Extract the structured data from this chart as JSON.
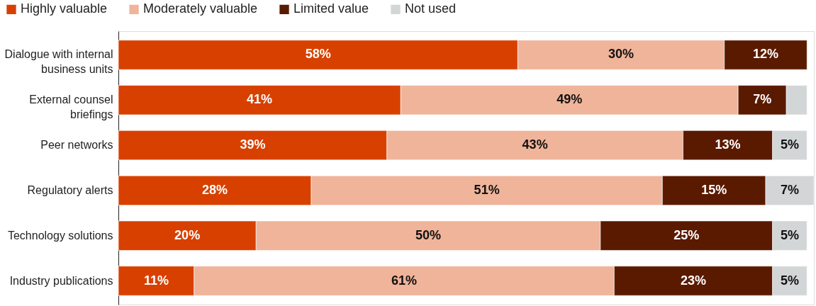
{
  "chart_data": {
    "type": "bar",
    "orientation": "horizontal",
    "stacked": true,
    "legend": "top left",
    "categories": [
      "Dialogue with internal business units",
      "External counsel briefings",
      "Peer networks",
      "Regulatory alerts",
      "Technology solutions",
      "Industry publications"
    ],
    "series": [
      {
        "name": "Highly valuable",
        "color": "#d84000",
        "values": [
          58,
          41,
          39,
          28,
          20,
          11
        ],
        "value_labels": [
          "58%",
          "41%",
          "39%",
          "28%",
          "20%",
          "11%"
        ]
      },
      {
        "name": "Moderately valuable",
        "color": "#efb49a",
        "values": [
          30,
          49,
          43,
          51,
          50,
          61
        ],
        "value_labels": [
          "30%",
          "49%",
          "43%",
          "51%",
          "50%",
          "61%"
        ]
      },
      {
        "name": "Limited value",
        "color": "#5a1a00",
        "values": [
          12,
          7,
          13,
          15,
          25,
          23
        ],
        "value_labels": [
          "12%",
          "7%",
          "13%",
          "15%",
          "25%",
          "23%"
        ]
      },
      {
        "name": "Not used",
        "color": "#d3d6d6",
        "values": [
          null,
          3,
          5,
          7,
          5,
          5
        ],
        "value_labels": [
          null,
          null,
          "5%",
          "7%",
          "5%",
          "5%"
        ]
      }
    ]
  }
}
